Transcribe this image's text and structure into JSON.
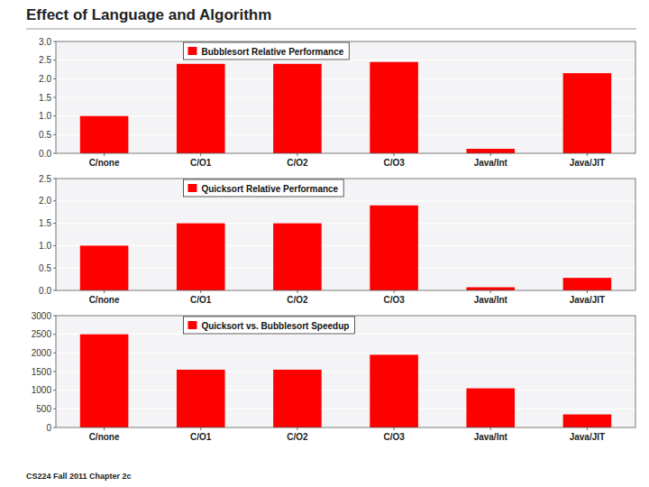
{
  "title": "Effect of Language and Algorithm",
  "annotations": [
    "CS224 Fall 2011 Chapter 2c"
  ],
  "chart_data": [
    {
      "type": "bar",
      "categories": [
        "C/none",
        "C/O1",
        "C/O2",
        "C/O3",
        "Java/Int",
        "Java/JIT"
      ],
      "series": [
        {
          "name": "Bubblesort Relative Performance",
          "color": "#FF0000",
          "values": [
            1.0,
            2.4,
            2.4,
            2.45,
            0.12,
            2.15
          ]
        }
      ],
      "ylim": [
        0,
        3
      ],
      "yticks": [
        {
          "value": 0,
          "label": "0.0"
        },
        {
          "value": 0.5,
          "label": "0.5"
        },
        {
          "value": 1,
          "label": "1.0"
        },
        {
          "value": 1.5,
          "label": "1.5"
        },
        {
          "value": 2,
          "label": "2.0"
        },
        {
          "value": 2.5,
          "label": "2.5"
        },
        {
          "value": 3,
          "label": "3.0"
        }
      ],
      "grid": true,
      "legend": "upper left"
    },
    {
      "type": "bar",
      "categories": [
        "C/none",
        "C/O1",
        "C/O2",
        "C/O3",
        "Java/Int",
        "Java/JIT"
      ],
      "series": [
        {
          "name": "Quicksort Relative Performance",
          "color": "#FF0000",
          "values": [
            1.0,
            1.5,
            1.5,
            1.9,
            0.07,
            0.28
          ]
        }
      ],
      "ylim": [
        0,
        2.5
      ],
      "yticks": [
        {
          "value": 0,
          "label": "0.0"
        },
        {
          "value": 0.5,
          "label": "0.5"
        },
        {
          "value": 1,
          "label": "1.0"
        },
        {
          "value": 1.5,
          "label": "1.5"
        },
        {
          "value": 2,
          "label": "2.0"
        },
        {
          "value": 2.5,
          "label": "2.5"
        }
      ],
      "grid": true,
      "legend": "upper left"
    },
    {
      "type": "bar",
      "categories": [
        "C/none",
        "C/O1",
        "C/O2",
        "C/O3",
        "Java/Int",
        "Java/JIT"
      ],
      "series": [
        {
          "name": "Quicksort vs. Bubblesort Speedup",
          "color": "#FF0000",
          "values": [
            2500,
            1550,
            1550,
            1950,
            1050,
            350
          ]
        }
      ],
      "ylim": [
        0,
        3000
      ],
      "yticks": [
        0,
        500,
        1000,
        1500,
        2000,
        2500,
        3000
      ],
      "grid": true,
      "legend": "upper left"
    }
  ]
}
